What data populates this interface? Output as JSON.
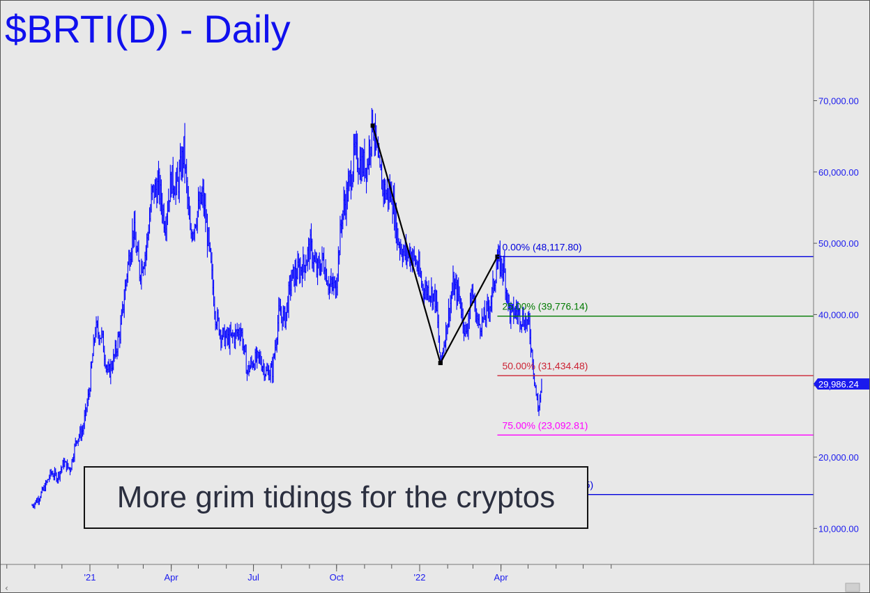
{
  "chart_data": {
    "type": "bar",
    "title": "$BRTI(D) - Daily",
    "ylim": [
      5000,
      85000
    ],
    "y_ticks": [
      {
        "value": 10000,
        "label": "10,000.00"
      },
      {
        "value": 20000,
        "label": "20,000.00"
      },
      {
        "value": 30000,
        "label": "30,000.00"
      },
      {
        "value": 40000,
        "label": "40,000.00"
      },
      {
        "value": 50000,
        "label": "50,000.00"
      },
      {
        "value": 60000,
        "label": "60,000.00"
      },
      {
        "value": 70000,
        "label": "70,000.00"
      }
    ],
    "x_ticks": [
      "'21",
      "Apr",
      "Jul",
      "Oct",
      "'22",
      "Apr"
    ],
    "x_tick_dates": [
      "2021-01-01",
      "2021-04-01",
      "2021-07-01",
      "2021-10-01",
      "2022-01-01",
      "2022-04-01"
    ],
    "grid": false,
    "last_price": {
      "value": 29986.24,
      "label": "29,986.24"
    },
    "series": [
      {
        "style": "daily price bars (approximate close path)",
        "color": "#0000ff",
        "points": [
          [
            "2020-10-29",
            13200
          ],
          [
            "2020-11-05",
            14200
          ],
          [
            "2020-11-12",
            15800
          ],
          [
            "2020-11-19",
            17800
          ],
          [
            "2020-11-26",
            17200
          ],
          [
            "2020-12-03",
            19200
          ],
          [
            "2020-12-10",
            18300
          ],
          [
            "2020-12-17",
            22500
          ],
          [
            "2020-12-24",
            23800
          ],
          [
            "2020-12-31",
            29000
          ],
          [
            "2021-01-07",
            38000
          ],
          [
            "2021-01-14",
            37000
          ],
          [
            "2021-01-21",
            31500
          ],
          [
            "2021-01-28",
            34000
          ],
          [
            "2021-02-04",
            38000
          ],
          [
            "2021-02-11",
            46000
          ],
          [
            "2021-02-18",
            52000
          ],
          [
            "2021-02-25",
            46000
          ],
          [
            "2021-03-04",
            49000
          ],
          [
            "2021-03-11",
            57000
          ],
          [
            "2021-03-18",
            58000
          ],
          [
            "2021-03-25",
            53000
          ],
          [
            "2021-04-01",
            59000
          ],
          [
            "2021-04-08",
            58000
          ],
          [
            "2021-04-15",
            63000
          ],
          [
            "2021-04-22",
            51000
          ],
          [
            "2021-04-29",
            54000
          ],
          [
            "2021-05-06",
            56500
          ],
          [
            "2021-05-13",
            49000
          ],
          [
            "2021-05-20",
            40000
          ],
          [
            "2021-05-27",
            37000
          ],
          [
            "2021-06-03",
            36500
          ],
          [
            "2021-06-10",
            37000
          ],
          [
            "2021-06-17",
            38000
          ],
          [
            "2021-06-24",
            32000
          ],
          [
            "2021-07-01",
            33500
          ],
          [
            "2021-07-08",
            33800
          ],
          [
            "2021-07-15",
            31800
          ],
          [
            "2021-07-22",
            32200
          ],
          [
            "2021-07-29",
            40000
          ],
          [
            "2021-08-05",
            39500
          ],
          [
            "2021-08-12",
            45000
          ],
          [
            "2021-08-19",
            46000
          ],
          [
            "2021-08-26",
            47000
          ],
          [
            "2021-09-02",
            49500
          ],
          [
            "2021-09-09",
            46000
          ],
          [
            "2021-09-16",
            47700
          ],
          [
            "2021-09-23",
            44000
          ],
          [
            "2021-09-30",
            43800
          ],
          [
            "2021-10-07",
            54000
          ],
          [
            "2021-10-14",
            57500
          ],
          [
            "2021-10-21",
            62500
          ],
          [
            "2021-10-28",
            61000
          ],
          [
            "2021-11-04",
            61000
          ],
          [
            "2021-11-10",
            67500
          ],
          [
            "2021-11-17",
            60000
          ],
          [
            "2021-11-24",
            57000
          ],
          [
            "2021-12-01",
            57000
          ],
          [
            "2021-12-08",
            50500
          ],
          [
            "2021-12-15",
            48500
          ],
          [
            "2021-12-22",
            48500
          ],
          [
            "2021-12-29",
            47000
          ],
          [
            "2022-01-05",
            43500
          ],
          [
            "2022-01-12",
            43500
          ],
          [
            "2022-01-19",
            42000
          ],
          [
            "2022-01-24",
            33000
          ],
          [
            "2022-01-31",
            38500
          ],
          [
            "2022-02-07",
            44000
          ],
          [
            "2022-02-14",
            42500
          ],
          [
            "2022-02-21",
            37000
          ],
          [
            "2022-02-28",
            43200
          ],
          [
            "2022-03-07",
            38500
          ],
          [
            "2022-03-14",
            39500
          ],
          [
            "2022-03-21",
            42000
          ],
          [
            "2022-03-28",
            47500
          ],
          [
            "2022-04-04",
            46500
          ],
          [
            "2022-04-11",
            40000
          ],
          [
            "2022-04-18",
            40500
          ],
          [
            "2022-04-25",
            39500
          ],
          [
            "2022-05-02",
            38500
          ],
          [
            "2022-05-09",
            30000
          ],
          [
            "2022-05-12",
            26500
          ],
          [
            "2022-05-16",
            29986
          ]
        ]
      }
    ],
    "swing_lines": [
      {
        "from": [
          "2021-11-10",
          66500
        ],
        "to": [
          "2022-01-24",
          33200
        ]
      },
      {
        "from": [
          "2022-01-24",
          33200
        ],
        "to": [
          "2022-03-28",
          48117.8
        ]
      }
    ],
    "fib_levels": [
      {
        "label": "0.00% (48,117.80)",
        "value": 48117.8,
        "color": "#0000dd"
      },
      {
        "label": "25.00% (39,776.14)",
        "value": 39776.14,
        "color": "#007a00"
      },
      {
        "label": "50.00% (31,434.48)",
        "value": 31434.48,
        "color": "#cc2233"
      },
      {
        "label": "75.00% (23,092.81)",
        "value": 23092.81,
        "color": "#ff00ff"
      },
      {
        "label": "100.00% (14,751.15)",
        "value": 14751.15,
        "color": "#0000dd"
      }
    ],
    "fib_start_date": "2022-03-28",
    "annotations": [
      {
        "text": "More grim tidings for the cryptos"
      }
    ]
  }
}
